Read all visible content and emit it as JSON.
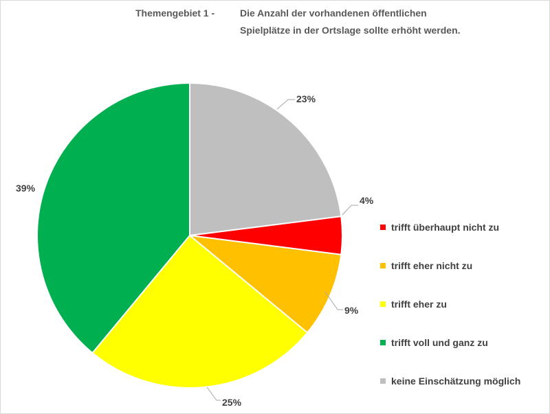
{
  "title": {
    "prefix": "Themengebiet 1   -",
    "line1": "Die Anzahl der vorhandenen öffentlichen",
    "line2": "Spielplätze in der Ortslage sollte erhöht werden."
  },
  "chart_data": {
    "type": "pie",
    "title": "Themengebiet 1 - Die Anzahl der vorhandenen öffentlichen Spielplätze in der Ortslage sollte erhöht werden.",
    "slices": [
      {
        "label": "trifft überhaupt nicht zu",
        "value": 4,
        "display": "4%",
        "color": "#ff0000"
      },
      {
        "label": "trifft eher nicht zu",
        "value": 9,
        "display": "9%",
        "color": "#ffc000"
      },
      {
        "label": "trifft eher zu",
        "value": 25,
        "display": "25%",
        "color": "#ffff00"
      },
      {
        "label": "trifft voll und ganz zu",
        "value": 39,
        "display": "39%",
        "color": "#00b050"
      },
      {
        "label": "keine Einschätzung möglich",
        "value": 23,
        "display": "23%",
        "color": "#bfbfbf"
      }
    ],
    "legend_position": "right"
  }
}
